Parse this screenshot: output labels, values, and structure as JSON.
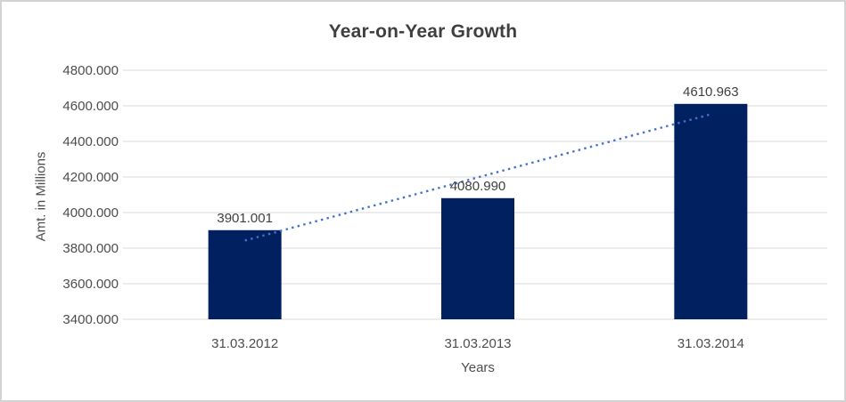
{
  "window": {
    "background_color": "#ffffff",
    "border_color": "#d3d3d3"
  },
  "chart_data": {
    "type": "bar",
    "title": "Year-on-Year Growth",
    "xlabel": "Years",
    "ylabel": "Amt. in Millions",
    "categories": [
      "31.03.2012",
      "31.03.2013",
      "31.03.2014"
    ],
    "values": [
      3901.001,
      4080.99,
      4610.963
    ],
    "data_labels": [
      "3901.001",
      "4080.990",
      "4610.963"
    ],
    "ytick_labels": [
      "3400.000",
      "3600.000",
      "3800.000",
      "4000.000",
      "4200.000",
      "4400.000",
      "4600.000",
      "4800.000"
    ],
    "ytick_values": [
      3400,
      3600,
      3800,
      4000,
      4200,
      4400,
      4600,
      4800
    ],
    "ylim": [
      3400,
      4800
    ],
    "grid": true,
    "legend": "none",
    "bar_color": "#002060",
    "label_color": "#404040",
    "axis_text_color": "#4d4d4d",
    "gridline_color": "#d9d9d9",
    "trendline": {
      "type": "linear",
      "style": "dotted",
      "color": "#4472C4",
      "start_value": 3842.67,
      "end_value": 4552.63
    }
  }
}
